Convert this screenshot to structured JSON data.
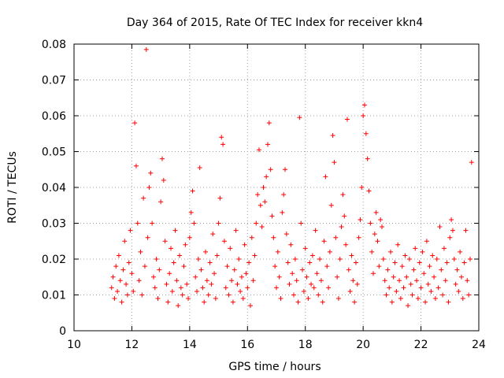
{
  "colors": {
    "series": "#ff0000",
    "grid": "#a0a0a0",
    "axis": "#000000"
  },
  "chart_data": {
    "type": "scatter",
    "title": "Day 364 of 2015, Rate Of TEC Index for receiver kkn4",
    "xlabel": "GPS time / hours",
    "ylabel": "ROTI / TECUs",
    "xlim": [
      10,
      24
    ],
    "ylim": [
      0,
      0.08
    ],
    "xticks": [
      10,
      12,
      14,
      16,
      18,
      20,
      22,
      24
    ],
    "xtick_labels": [
      "10",
      "12",
      "14",
      "16",
      "18",
      "20",
      "22",
      "24"
    ],
    "yticks": [
      0,
      0.01,
      0.02,
      0.03,
      0.04,
      0.05,
      0.06,
      0.07,
      0.08
    ],
    "ytick_labels": [
      "0",
      "0.01",
      "0.02",
      "0.03",
      "0.04",
      "0.05",
      "0.06",
      "0.07",
      "0.08"
    ],
    "grid": true,
    "marker": "plus",
    "series": [
      {
        "name": "ROTI",
        "points": [
          [
            11.3,
            0.012
          ],
          [
            11.35,
            0.015
          ],
          [
            11.4,
            0.009
          ],
          [
            11.45,
            0.018
          ],
          [
            11.5,
            0.011
          ],
          [
            11.55,
            0.021
          ],
          [
            11.6,
            0.014
          ],
          [
            11.65,
            0.008
          ],
          [
            11.7,
            0.017
          ],
          [
            11.75,
            0.025
          ],
          [
            11.8,
            0.013
          ],
          [
            11.85,
            0.01
          ],
          [
            11.9,
            0.019
          ],
          [
            11.95,
            0.028
          ],
          [
            12.0,
            0.016
          ],
          [
            12.05,
            0.011
          ],
          [
            12.1,
            0.058
          ],
          [
            12.15,
            0.046
          ],
          [
            12.2,
            0.03
          ],
          [
            12.25,
            0.014
          ],
          [
            12.3,
            0.022
          ],
          [
            12.35,
            0.01
          ],
          [
            12.4,
            0.037
          ],
          [
            12.45,
            0.018
          ],
          [
            12.5,
            0.0785
          ],
          [
            12.55,
            0.026
          ],
          [
            12.6,
            0.04
          ],
          [
            12.65,
            0.044
          ],
          [
            12.7,
            0.03
          ],
          [
            12.75,
            0.015
          ],
          [
            12.8,
            0.012
          ],
          [
            12.85,
            0.02
          ],
          [
            12.9,
            0.009
          ],
          [
            12.95,
            0.017
          ],
          [
            13.0,
            0.036
          ],
          [
            13.05,
            0.048
          ],
          [
            13.1,
            0.042
          ],
          [
            13.15,
            0.025
          ],
          [
            13.2,
            0.013
          ],
          [
            13.25,
            0.008
          ],
          [
            13.3,
            0.016
          ],
          [
            13.35,
            0.023
          ],
          [
            13.4,
            0.011
          ],
          [
            13.45,
            0.019
          ],
          [
            13.5,
            0.028
          ],
          [
            13.55,
            0.014
          ],
          [
            13.6,
            0.007
          ],
          [
            13.65,
            0.021
          ],
          [
            13.7,
            0.012
          ],
          [
            13.75,
            0.01
          ],
          [
            13.8,
            0.018
          ],
          [
            13.85,
            0.024
          ],
          [
            13.9,
            0.013
          ],
          [
            13.95,
            0.009
          ],
          [
            14.0,
            0.026
          ],
          [
            14.05,
            0.033
          ],
          [
            14.1,
            0.039
          ],
          [
            14.15,
            0.03
          ],
          [
            14.2,
            0.015
          ],
          [
            14.25,
            0.011
          ],
          [
            14.3,
            0.02
          ],
          [
            14.35,
            0.0455
          ],
          [
            14.4,
            0.017
          ],
          [
            14.45,
            0.012
          ],
          [
            14.5,
            0.008
          ],
          [
            14.55,
            0.022
          ],
          [
            14.6,
            0.014
          ],
          [
            14.65,
            0.01
          ],
          [
            14.7,
            0.019
          ],
          [
            14.75,
            0.013
          ],
          [
            14.8,
            0.027
          ],
          [
            14.85,
            0.016
          ],
          [
            14.9,
            0.009
          ],
          [
            14.95,
            0.021
          ],
          [
            15.0,
            0.03
          ],
          [
            15.05,
            0.037
          ],
          [
            15.1,
            0.054
          ],
          [
            15.15,
            0.052
          ],
          [
            15.2,
            0.025
          ],
          [
            15.25,
            0.012
          ],
          [
            15.3,
            0.018
          ],
          [
            15.35,
            0.01
          ],
          [
            15.4,
            0.023
          ],
          [
            15.45,
            0.014
          ],
          [
            15.5,
            0.008
          ],
          [
            15.55,
            0.017
          ],
          [
            15.6,
            0.028
          ],
          [
            15.65,
            0.013
          ],
          [
            15.7,
            0.02
          ],
          [
            15.75,
            0.011
          ],
          [
            15.8,
            0.015
          ],
          [
            15.85,
            0.009
          ],
          [
            15.9,
            0.024
          ],
          [
            15.95,
            0.016
          ],
          [
            16.0,
            0.012
          ],
          [
            16.05,
            0.019
          ],
          [
            16.1,
            0.007
          ],
          [
            16.15,
            0.026
          ],
          [
            16.2,
            0.014
          ],
          [
            16.25,
            0.021
          ],
          [
            16.3,
            0.03
          ],
          [
            16.35,
            0.038
          ],
          [
            16.4,
            0.0505
          ],
          [
            16.45,
            0.035
          ],
          [
            16.5,
            0.029
          ],
          [
            16.55,
            0.04
          ],
          [
            16.6,
            0.036
          ],
          [
            16.65,
            0.043
          ],
          [
            16.7,
            0.052
          ],
          [
            16.75,
            0.058
          ],
          [
            16.8,
            0.045
          ],
          [
            16.85,
            0.032
          ],
          [
            16.9,
            0.026
          ],
          [
            16.95,
            0.018
          ],
          [
            17.0,
            0.012
          ],
          [
            17.05,
            0.022
          ],
          [
            17.1,
            0.015
          ],
          [
            17.15,
            0.009
          ],
          [
            17.2,
            0.033
          ],
          [
            17.25,
            0.038
          ],
          [
            17.3,
            0.045
          ],
          [
            17.35,
            0.027
          ],
          [
            17.4,
            0.019
          ],
          [
            17.45,
            0.013
          ],
          [
            17.5,
            0.024
          ],
          [
            17.55,
            0.016
          ],
          [
            17.6,
            0.01
          ],
          [
            17.65,
            0.02
          ],
          [
            17.7,
            0.014
          ],
          [
            17.75,
            0.008
          ],
          [
            17.8,
            0.0595
          ],
          [
            17.85,
            0.03
          ],
          [
            17.9,
            0.017
          ],
          [
            17.95,
            0.011
          ],
          [
            18.0,
            0.023
          ],
          [
            18.05,
            0.015
          ],
          [
            18.1,
            0.009
          ],
          [
            18.15,
            0.019
          ],
          [
            18.2,
            0.013
          ],
          [
            18.25,
            0.021
          ],
          [
            18.3,
            0.012
          ],
          [
            18.35,
            0.028
          ],
          [
            18.4,
            0.016
          ],
          [
            18.45,
            0.01
          ],
          [
            18.5,
            0.02
          ],
          [
            18.55,
            0.014
          ],
          [
            18.6,
            0.008
          ],
          [
            18.65,
            0.025
          ],
          [
            18.7,
            0.043
          ],
          [
            18.75,
            0.018
          ],
          [
            18.8,
            0.012
          ],
          [
            18.85,
            0.022
          ],
          [
            18.9,
            0.035
          ],
          [
            18.95,
            0.0545
          ],
          [
            19.0,
            0.047
          ],
          [
            19.05,
            0.026
          ],
          [
            19.1,
            0.015
          ],
          [
            19.15,
            0.009
          ],
          [
            19.2,
            0.02
          ],
          [
            19.25,
            0.029
          ],
          [
            19.3,
            0.038
          ],
          [
            19.35,
            0.032
          ],
          [
            19.4,
            0.024
          ],
          [
            19.45,
            0.059
          ],
          [
            19.5,
            0.017
          ],
          [
            19.55,
            0.011
          ],
          [
            19.6,
            0.021
          ],
          [
            19.65,
            0.014
          ],
          [
            19.7,
            0.008
          ],
          [
            19.75,
            0.019
          ],
          [
            19.8,
            0.013
          ],
          [
            19.85,
            0.026
          ],
          [
            19.9,
            0.031
          ],
          [
            19.95,
            0.04
          ],
          [
            20.0,
            0.06
          ],
          [
            20.05,
            0.063
          ],
          [
            20.1,
            0.055
          ],
          [
            20.15,
            0.048
          ],
          [
            20.2,
            0.039
          ],
          [
            20.25,
            0.03
          ],
          [
            20.3,
            0.022
          ],
          [
            20.35,
            0.016
          ],
          [
            20.4,
            0.027
          ],
          [
            20.45,
            0.033
          ],
          [
            20.5,
            0.025
          ],
          [
            20.55,
            0.018
          ],
          [
            20.6,
            0.031
          ],
          [
            20.65,
            0.029
          ],
          [
            20.7,
            0.02
          ],
          [
            20.75,
            0.014
          ],
          [
            20.8,
            0.01
          ],
          [
            20.85,
            0.017
          ],
          [
            20.9,
            0.012
          ],
          [
            20.95,
            0.022
          ],
          [
            21.0,
            0.008
          ],
          [
            21.05,
            0.015
          ],
          [
            21.1,
            0.019
          ],
          [
            21.15,
            0.011
          ],
          [
            21.2,
            0.024
          ],
          [
            21.25,
            0.014
          ],
          [
            21.3,
            0.009
          ],
          [
            21.35,
            0.018
          ],
          [
            21.4,
            0.012
          ],
          [
            21.45,
            0.021
          ],
          [
            21.5,
            0.015
          ],
          [
            21.55,
            0.007
          ],
          [
            21.6,
            0.02
          ],
          [
            21.65,
            0.013
          ],
          [
            21.7,
            0.01
          ],
          [
            21.75,
            0.017
          ],
          [
            21.8,
            0.023
          ],
          [
            21.85,
            0.014
          ],
          [
            21.9,
            0.009
          ],
          [
            21.95,
            0.019
          ],
          [
            22.0,
            0.012
          ],
          [
            22.05,
            0.022
          ],
          [
            22.1,
            0.016
          ],
          [
            22.15,
            0.008
          ],
          [
            22.2,
            0.025
          ],
          [
            22.25,
            0.013
          ],
          [
            22.3,
            0.018
          ],
          [
            22.35,
            0.011
          ],
          [
            22.4,
            0.021
          ],
          [
            22.45,
            0.015
          ],
          [
            22.5,
            0.009
          ],
          [
            22.55,
            0.02
          ],
          [
            22.6,
            0.012
          ],
          [
            22.65,
            0.029
          ],
          [
            22.7,
            0.017
          ],
          [
            22.75,
            0.01
          ],
          [
            22.8,
            0.023
          ],
          [
            22.85,
            0.014
          ],
          [
            22.9,
            0.019
          ],
          [
            22.95,
            0.008
          ],
          [
            23.0,
            0.026
          ],
          [
            23.05,
            0.031
          ],
          [
            23.1,
            0.028
          ],
          [
            23.15,
            0.02
          ],
          [
            23.2,
            0.013
          ],
          [
            23.25,
            0.017
          ],
          [
            23.3,
            0.011
          ],
          [
            23.35,
            0.022
          ],
          [
            23.4,
            0.015
          ],
          [
            23.45,
            0.009
          ],
          [
            23.5,
            0.019
          ],
          [
            23.55,
            0.028
          ],
          [
            23.6,
            0.014
          ],
          [
            23.65,
            0.01
          ],
          [
            23.7,
            0.02
          ],
          [
            23.75,
            0.047
          ]
        ]
      }
    ]
  }
}
